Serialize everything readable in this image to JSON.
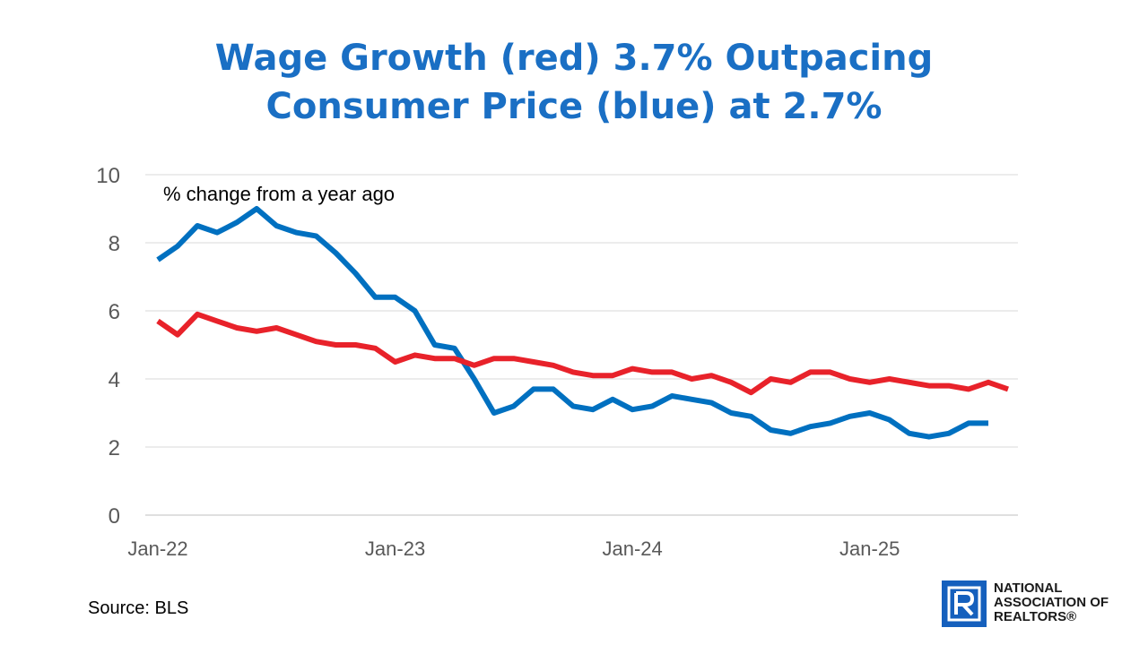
{
  "title_lines": [
    "Wage Growth (red) 3.7% Outpacing",
    "Consumer Price (blue) at 2.7%"
  ],
  "source": "Source: BLS",
  "logo": {
    "lines": [
      "NATIONAL",
      "ASSOCIATION OF",
      "REALTORS®"
    ],
    "color": "#1560bd"
  },
  "chart_data": {
    "type": "line",
    "annotation": "% change from a year ago",
    "x_start": "2022-01",
    "x_end": "2025-08",
    "x_tick_labels": [
      "Jan-22",
      "Jan-23",
      "Jan-24",
      "Jan-25"
    ],
    "x_tick_dates": [
      "2022-01",
      "2023-01",
      "2024-01",
      "2025-01"
    ],
    "ylim": [
      0,
      10
    ],
    "y_ticks": [
      0,
      2,
      4,
      6,
      8,
      10
    ],
    "grid": true,
    "legend": "none",
    "series": [
      {
        "color": "#0070c0",
        "x": [
          "2022-01",
          "2022-02",
          "2022-03",
          "2022-04",
          "2022-05",
          "2022-06",
          "2022-07",
          "2022-08",
          "2022-09",
          "2022-10",
          "2022-11",
          "2022-12",
          "2023-01",
          "2023-02",
          "2023-03",
          "2023-04",
          "2023-05",
          "2023-06",
          "2023-07",
          "2023-08",
          "2023-09",
          "2023-10",
          "2023-11",
          "2023-12",
          "2024-01",
          "2024-02",
          "2024-03",
          "2024-04",
          "2024-05",
          "2024-06",
          "2024-07",
          "2024-08",
          "2024-09",
          "2024-10",
          "2024-11",
          "2024-12",
          "2025-01",
          "2025-02",
          "2025-03",
          "2025-04",
          "2025-05",
          "2025-06",
          "2025-07"
        ],
        "values": [
          7.5,
          7.9,
          8.5,
          8.3,
          8.6,
          9.0,
          8.5,
          8.3,
          8.2,
          7.7,
          7.1,
          6.4,
          6.4,
          6.0,
          5.0,
          4.9,
          4.0,
          3.0,
          3.2,
          3.7,
          3.7,
          3.2,
          3.1,
          3.4,
          3.1,
          3.2,
          3.5,
          3.4,
          3.3,
          3.0,
          2.9,
          2.5,
          2.4,
          2.6,
          2.7,
          2.9,
          3.0,
          2.8,
          2.4,
          2.3,
          2.4,
          2.7,
          2.7
        ]
      },
      {
        "color": "#e8222a",
        "x": [
          "2022-01",
          "2022-02",
          "2022-03",
          "2022-04",
          "2022-05",
          "2022-06",
          "2022-07",
          "2022-08",
          "2022-09",
          "2022-10",
          "2022-11",
          "2022-12",
          "2023-01",
          "2023-02",
          "2023-03",
          "2023-04",
          "2023-05",
          "2023-06",
          "2023-07",
          "2023-08",
          "2023-09",
          "2023-10",
          "2023-11",
          "2023-12",
          "2024-01",
          "2024-02",
          "2024-03",
          "2024-04",
          "2024-05",
          "2024-06",
          "2024-07",
          "2024-08",
          "2024-09",
          "2024-10",
          "2024-11",
          "2024-12",
          "2025-01",
          "2025-02",
          "2025-03",
          "2025-04",
          "2025-05",
          "2025-06",
          "2025-07",
          "2025-08"
        ],
        "values": [
          5.7,
          5.3,
          5.9,
          5.7,
          5.5,
          5.4,
          5.5,
          5.3,
          5.1,
          5.0,
          5.0,
          4.9,
          4.5,
          4.7,
          4.6,
          4.6,
          4.4,
          4.6,
          4.6,
          4.5,
          4.4,
          4.2,
          4.1,
          4.1,
          4.3,
          4.2,
          4.2,
          4.0,
          4.1,
          3.9,
          3.6,
          4.0,
          3.9,
          4.2,
          4.2,
          4.0,
          3.9,
          4.0,
          3.9,
          3.8,
          3.8,
          3.7,
          3.9,
          3.7
        ]
      }
    ]
  }
}
